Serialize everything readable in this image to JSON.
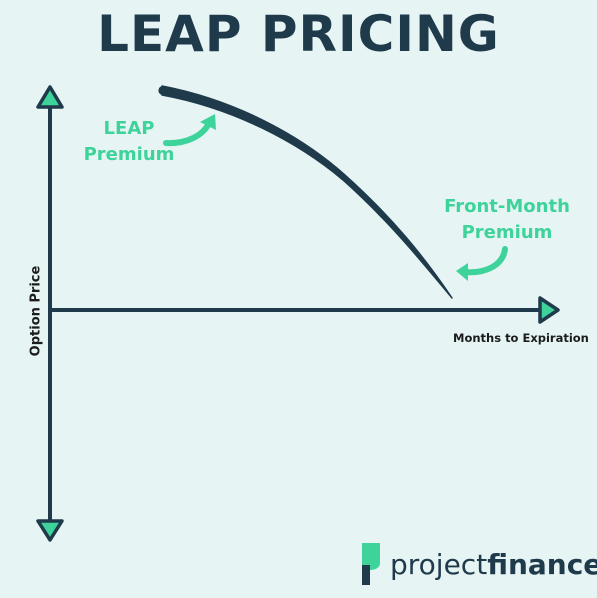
{
  "title": "LEAP PRICING",
  "annotations": {
    "leap": [
      "LEAP",
      "Premium"
    ],
    "front_month": [
      "Front-Month",
      "Premium"
    ]
  },
  "axes": {
    "x_label": "Months to Expiration",
    "y_label": "Option Price"
  },
  "brand": {
    "name_regular": "project",
    "name_bold": "finance"
  },
  "colors": {
    "background": "#e6f4f4",
    "dark": "#1f3a4b",
    "accent": "#3ed39a"
  }
}
